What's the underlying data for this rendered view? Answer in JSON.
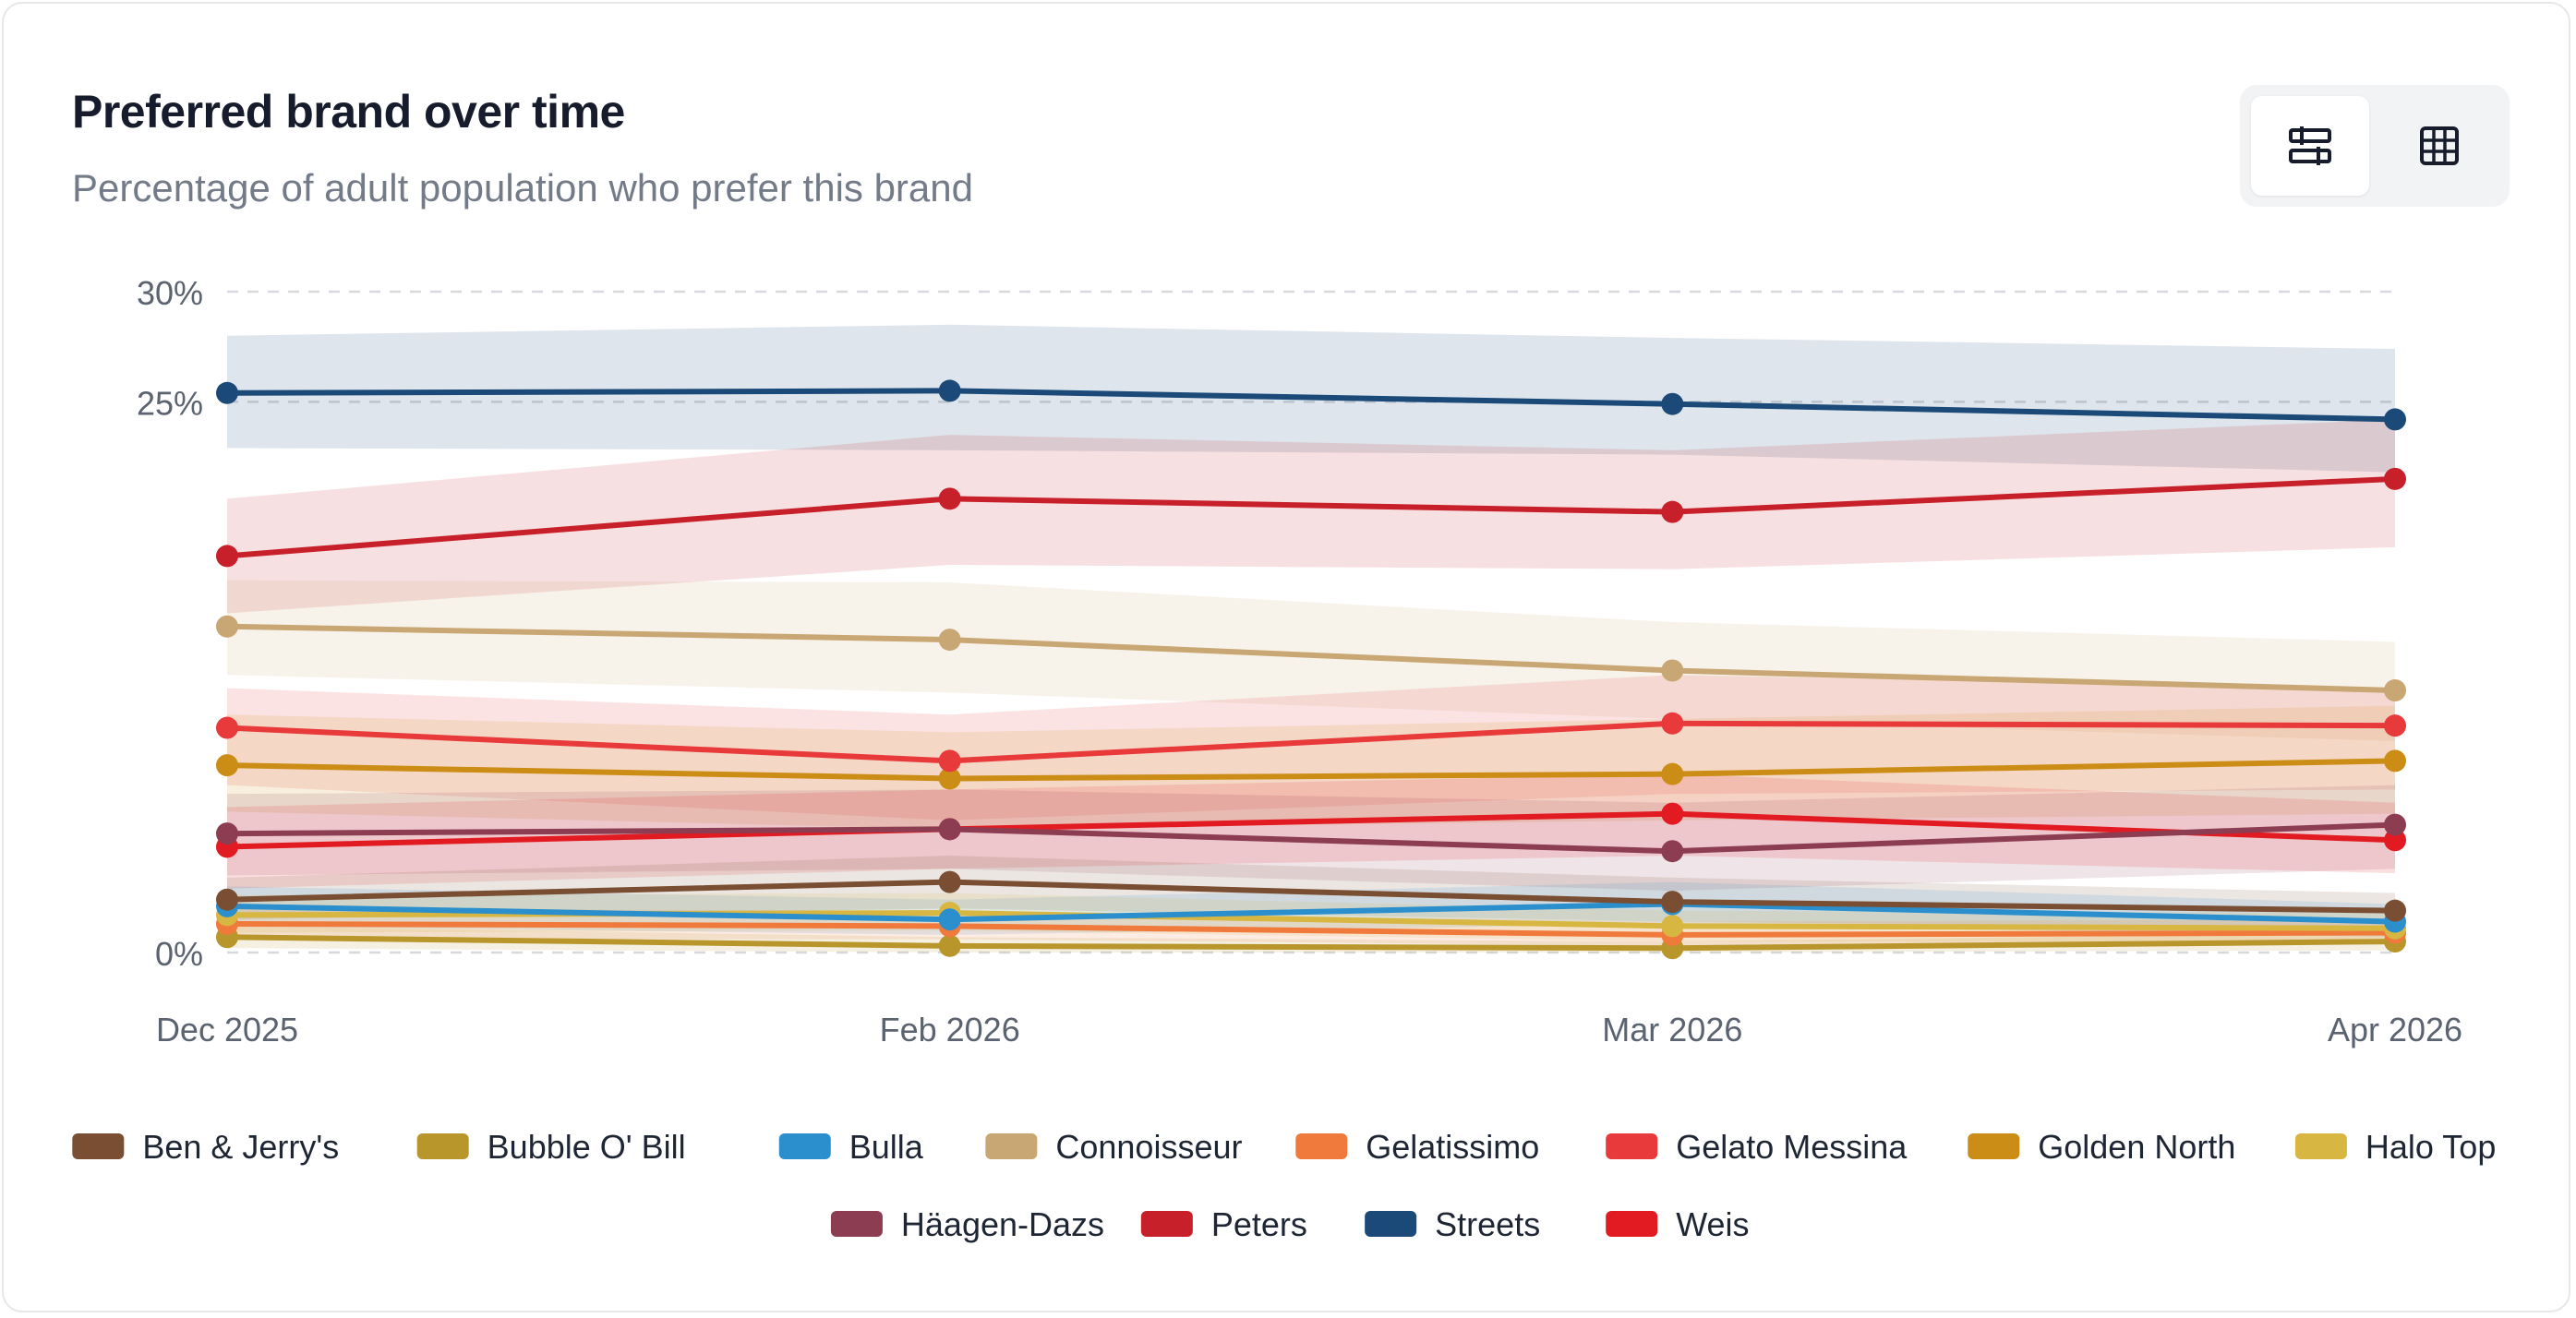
{
  "header": {
    "title": "Preferred brand over time",
    "subtitle": "Percentage of adult population who prefer this brand"
  },
  "view_toggle": {
    "options": [
      {
        "icon": "chart-view-icon",
        "active": true
      },
      {
        "icon": "table-view-icon",
        "active": false
      }
    ]
  },
  "chart_data": {
    "type": "line",
    "x": [
      "Dec 2025",
      "Feb 2026",
      "Mar 2026",
      "Apr 2026"
    ],
    "yticks": [
      0,
      25,
      30
    ],
    "ytick_labels": [
      "0%",
      "25%",
      "30%"
    ],
    "ylim": [
      0,
      30
    ],
    "grid": true,
    "legend_position": "bottom",
    "confidence_bands": true,
    "series": [
      {
        "name": "Streets",
        "color": "#1b4a78",
        "values": [
          25.4,
          25.5,
          24.9,
          24.2
        ],
        "lower": [
          22.9,
          22.8,
          22.6,
          21.8
        ],
        "upper": [
          28.0,
          28.5,
          27.9,
          27.4
        ]
      },
      {
        "name": "Peters",
        "color": "#c8202a",
        "values": [
          18.0,
          20.6,
          20.0,
          21.5
        ],
        "lower": [
          15.4,
          17.6,
          17.4,
          18.4
        ],
        "upper": [
          20.6,
          23.5,
          22.8,
          24.2
        ]
      },
      {
        "name": "Connoisseur",
        "color": "#c9a774",
        "values": [
          14.8,
          14.2,
          12.8,
          11.9
        ],
        "lower": [
          12.6,
          11.8,
          10.6,
          9.6
        ],
        "upper": [
          16.9,
          16.8,
          15.0,
          14.1
        ]
      },
      {
        "name": "Gelato Messina",
        "color": "#e8393b",
        "values": [
          10.2,
          8.7,
          10.4,
          10.3
        ],
        "lower": [
          7.6,
          6.0,
          7.2,
          7.4
        ],
        "upper": [
          12.0,
          10.8,
          12.6,
          12.0
        ]
      },
      {
        "name": "Golden North",
        "color": "#cc8d16",
        "values": [
          8.5,
          7.9,
          8.1,
          8.7
        ],
        "lower": [
          6.4,
          5.6,
          6.0,
          6.3
        ],
        "upper": [
          10.8,
          10.0,
          10.6,
          11.2
        ]
      },
      {
        "name": "Häagen-Dazs",
        "color": "#8c3d52",
        "values": [
          5.4,
          5.6,
          4.6,
          5.8
        ],
        "lower": [
          3.5,
          3.8,
          2.8,
          3.8
        ],
        "upper": [
          7.2,
          7.4,
          6.8,
          7.6
        ]
      },
      {
        "name": "Weis",
        "color": "#e21b22",
        "values": [
          4.8,
          5.6,
          6.3,
          5.1
        ],
        "lower": [
          2.9,
          3.8,
          4.4,
          3.6
        ],
        "upper": [
          6.6,
          7.4,
          8.1,
          6.8
        ]
      },
      {
        "name": "Ben & Jerry's",
        "color": "#7a4e33",
        "values": [
          2.4,
          3.2,
          2.3,
          1.9
        ],
        "lower": [
          1.5,
          2.0,
          1.4,
          1.1
        ],
        "upper": [
          3.4,
          4.4,
          3.4,
          2.7
        ]
      },
      {
        "name": "Bulla",
        "color": "#2a8fcc",
        "values": [
          2.1,
          1.5,
          2.2,
          1.4
        ],
        "lower": [
          1.2,
          0.8,
          1.3,
          0.7
        ],
        "upper": [
          3.0,
          2.4,
          3.2,
          2.2
        ]
      },
      {
        "name": "Halo Top",
        "color": "#d8b642",
        "values": [
          1.7,
          1.8,
          1.2,
          1.1
        ],
        "lower": [
          0.9,
          1.0,
          0.5,
          0.5
        ],
        "upper": [
          2.6,
          2.7,
          1.9,
          1.8
        ]
      },
      {
        "name": "Gelatissimo",
        "color": "#f07a3c",
        "values": [
          1.3,
          1.2,
          0.8,
          0.9
        ],
        "lower": [
          0.6,
          0.6,
          0.3,
          0.4
        ],
        "upper": [
          2.0,
          1.9,
          1.4,
          1.5
        ]
      },
      {
        "name": "Bubble O' Bill",
        "color": "#b8962c",
        "values": [
          0.7,
          0.3,
          0.2,
          0.5
        ],
        "lower": [
          0.2,
          0.0,
          0.0,
          0.1
        ],
        "upper": [
          1.2,
          0.7,
          0.5,
          0.9
        ]
      }
    ],
    "legend": [
      [
        "Ben & Jerry's",
        "Bubble O' Bill",
        "Bulla",
        "Connoisseur",
        "Gelatissimo",
        "Gelato Messina",
        "Golden North",
        "Halo Top"
      ],
      [
        "Häagen-Dazs",
        "Peters",
        "Streets",
        "Weis"
      ]
    ]
  }
}
